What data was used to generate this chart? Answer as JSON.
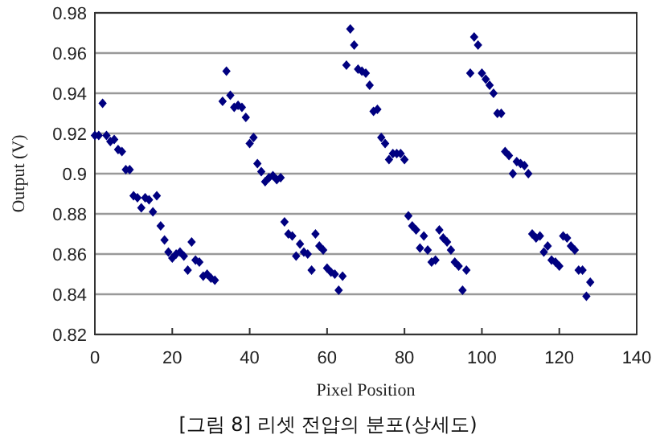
{
  "chart_data": {
    "type": "scatter",
    "xlabel": "Pixel Position",
    "ylabel": "Output (V)",
    "annotations": [
      "[그림 8] 리셋 전압의 분포(상세도)"
    ],
    "x": [
      0,
      1,
      2,
      3,
      4,
      5,
      6,
      7,
      8,
      9,
      10,
      11,
      12,
      13,
      14,
      15,
      16,
      17,
      18,
      19,
      20,
      21,
      22,
      23,
      24,
      25,
      26,
      27,
      28,
      29,
      30,
      31,
      33,
      34,
      35,
      36,
      37,
      38,
      39,
      40,
      41,
      42,
      43,
      44,
      45,
      46,
      47,
      48,
      49,
      50,
      51,
      52,
      53,
      54,
      55,
      56,
      57,
      58,
      59,
      60,
      61,
      62,
      63,
      64,
      65,
      66,
      67,
      68,
      69,
      70,
      71,
      72,
      73,
      74,
      75,
      76,
      77,
      78,
      79,
      80,
      81,
      82,
      83,
      84,
      85,
      86,
      87,
      88,
      89,
      90,
      91,
      92,
      93,
      94,
      95,
      96,
      97,
      98,
      99,
      100,
      101,
      102,
      103,
      104,
      105,
      106,
      107,
      108,
      109,
      110,
      111,
      112,
      113,
      114,
      115,
      116,
      117,
      118,
      119,
      120,
      121,
      122,
      123,
      124,
      125,
      126,
      127,
      128
    ],
    "series": [
      {
        "color": "#000080",
        "values": [
          0.919,
          0.919,
          0.935,
          0.919,
          0.916,
          0.917,
          0.912,
          0.911,
          0.902,
          0.902,
          0.889,
          0.888,
          0.883,
          0.888,
          0.887,
          0.881,
          0.889,
          0.874,
          0.867,
          0.861,
          0.858,
          0.86,
          0.861,
          0.859,
          0.852,
          0.866,
          0.857,
          0.856,
          0.849,
          0.85,
          0.848,
          0.847,
          0.936,
          0.951,
          0.939,
          0.933,
          0.934,
          0.933,
          0.928,
          0.915,
          0.918,
          0.905,
          0.901,
          0.896,
          0.898,
          0.899,
          0.897,
          0.898,
          0.876,
          0.87,
          0.869,
          0.859,
          0.865,
          0.861,
          0.86,
          0.852,
          0.87,
          0.864,
          0.862,
          0.853,
          0.851,
          0.85,
          0.842,
          0.849,
          0.954,
          0.972,
          0.964,
          0.952,
          0.951,
          0.95,
          0.944,
          0.931,
          0.932,
          0.918,
          0.915,
          0.907,
          0.91,
          0.91,
          0.91,
          0.907,
          0.879,
          0.874,
          0.872,
          0.863,
          0.869,
          0.862,
          0.856,
          0.857,
          0.872,
          0.868,
          0.866,
          0.862,
          0.856,
          0.854,
          0.842,
          0.852,
          0.95,
          0.968,
          0.964,
          0.95,
          0.947,
          0.944,
          0.94,
          0.93,
          0.93,
          0.911,
          0.909,
          0.9,
          0.906,
          0.905,
          0.904,
          0.9,
          0.87,
          0.868,
          0.869,
          0.861,
          0.864,
          0.857,
          0.856,
          0.854,
          0.869,
          0.868,
          0.864,
          0.862,
          0.852,
          0.852,
          0.839,
          0.846
        ]
      }
    ],
    "xlim": [
      0,
      140
    ],
    "xticks": [
      0,
      20,
      40,
      60,
      80,
      100,
      120,
      140
    ],
    "ylim": [
      0.82,
      0.98
    ],
    "yticks": [
      0.82,
      0.84,
      0.86,
      0.88,
      0.9,
      0.92,
      0.94,
      0.96,
      0.98
    ],
    "grid": "y",
    "marker": "diamond"
  }
}
